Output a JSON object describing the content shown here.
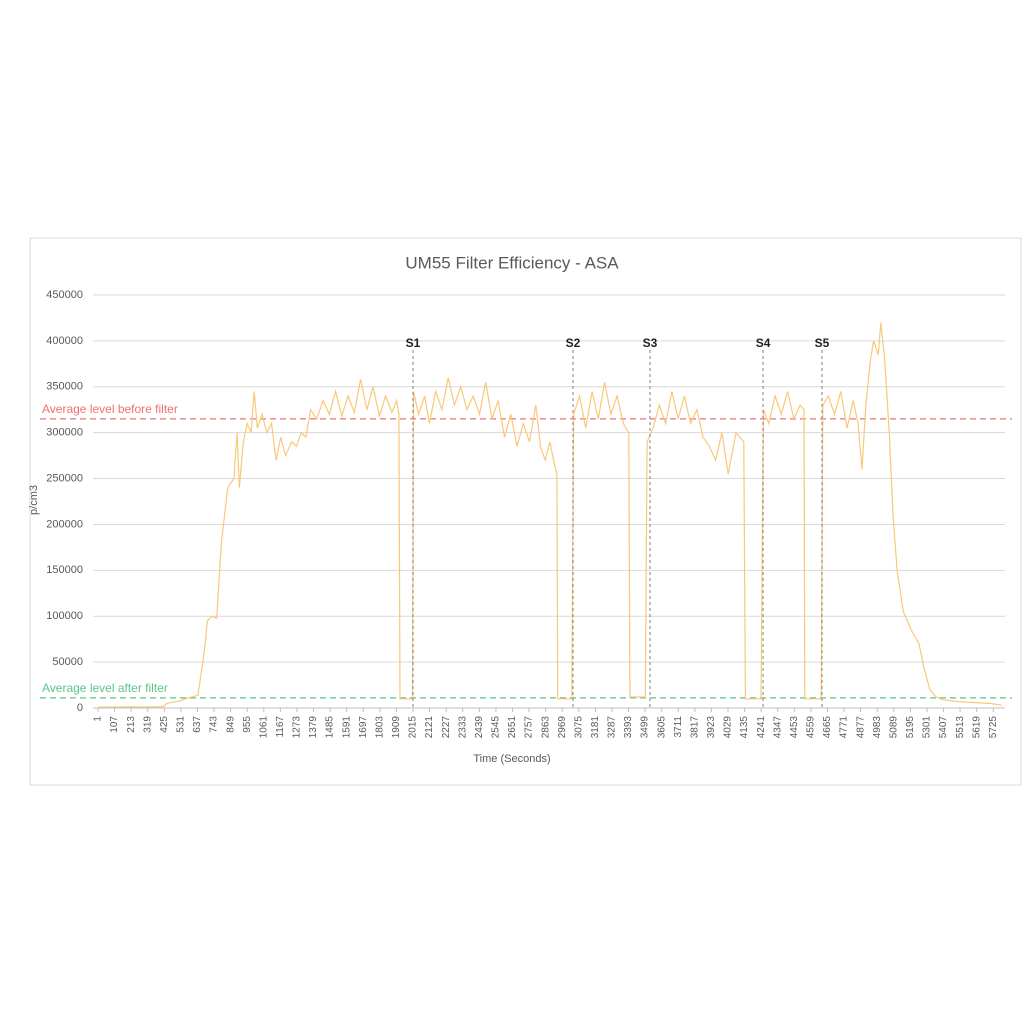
{
  "chart_data": {
    "type": "line",
    "title": "UM55 Filter Efficiency - ASA",
    "x_label": "Time (Seconds)",
    "y_label": "p/cm3",
    "xlim": [
      1,
      5800
    ],
    "ylim": [
      0,
      450000
    ],
    "yticks": [
      0,
      50000,
      100000,
      150000,
      200000,
      250000,
      300000,
      350000,
      400000,
      450000
    ],
    "xticks": [
      1,
      107,
      213,
      319,
      425,
      531,
      637,
      743,
      849,
      955,
      1061,
      1167,
      1273,
      1379,
      1485,
      1591,
      1697,
      1803,
      1909,
      2015,
      2121,
      2227,
      2333,
      2439,
      2545,
      2651,
      2757,
      2863,
      2969,
      3075,
      3181,
      3287,
      3393,
      3499,
      3605,
      3711,
      3817,
      3923,
      4029,
      4135,
      4241,
      4347,
      4453,
      4559,
      4665,
      4771,
      4877,
      4983,
      5089,
      5195,
      5301,
      5407,
      5513,
      5619,
      5725
    ],
    "grid": true,
    "reference_lines": [
      {
        "label": "Average level before filter",
        "value": 315000,
        "color": "#f07070"
      },
      {
        "label": "Average level after filter",
        "value": 11000,
        "color": "#5cc48a"
      }
    ],
    "markers": [
      {
        "label": "S1",
        "x": 2015
      },
      {
        "label": "S2",
        "x": 3038
      },
      {
        "label": "S3",
        "x": 3530
      },
      {
        "label": "S4",
        "x": 4253
      },
      {
        "label": "S5",
        "x": 4630
      }
    ],
    "series": [
      {
        "color": "#f9c87a",
        "x": [
          1,
          100,
          200,
          300,
          420,
          440,
          530,
          560,
          640,
          680,
          700,
          730,
          760,
          790,
          830,
          870,
          890,
          905,
          930,
          955,
          980,
          1000,
          1020,
          1050,
          1080,
          1110,
          1140,
          1170,
          1200,
          1240,
          1270,
          1300,
          1330,
          1360,
          1400,
          1440,
          1480,
          1520,
          1560,
          1600,
          1640,
          1680,
          1720,
          1760,
          1800,
          1840,
          1880,
          1910,
          1925,
          1932,
          2000,
          2012,
          2018,
          2050,
          2090,
          2120,
          2160,
          2200,
          2240,
          2280,
          2320,
          2360,
          2400,
          2440,
          2480,
          2520,
          2560,
          2600,
          2640,
          2680,
          2720,
          2760,
          2800,
          2830,
          2860,
          2890,
          2920,
          2935,
          2940,
          3030,
          3042,
          3080,
          3120,
          3160,
          3200,
          3240,
          3280,
          3320,
          3360,
          3395,
          3402,
          3500,
          3512,
          3550,
          3590,
          3630,
          3670,
          3710,
          3750,
          3790,
          3830,
          3870,
          3910,
          3950,
          3990,
          4030,
          4080,
          4130,
          4140,
          4240,
          4255,
          4290,
          4330,
          4370,
          4410,
          4450,
          4490,
          4515,
          4520,
          4625,
          4635,
          4670,
          4710,
          4750,
          4790,
          4830,
          4860,
          4886,
          4910,
          4940,
          4960,
          4990,
          5006,
          5030,
          5060,
          5084,
          5110,
          5150,
          5200,
          5250,
          5280,
          5320,
          5360,
          5400,
          5500,
          5600,
          5700,
          5780
        ],
        "values": [
          1000,
          1000,
          1200,
          1000,
          1500,
          5000,
          8000,
          10000,
          14000,
          60000,
          95000,
          100000,
          98000,
          180000,
          240000,
          250000,
          300000,
          240000,
          290000,
          310000,
          300000,
          345000,
          305000,
          320000,
          300000,
          310000,
          270000,
          295000,
          275000,
          290000,
          285000,
          300000,
          295000,
          325000,
          315000,
          335000,
          320000,
          345000,
          318000,
          340000,
          322000,
          358000,
          325000,
          350000,
          318000,
          340000,
          322000,
          335000,
          320000,
          10000,
          10000,
          10000,
          345000,
          320000,
          340000,
          310000,
          345000,
          325000,
          360000,
          330000,
          350000,
          325000,
          340000,
          320000,
          355000,
          315000,
          335000,
          295000,
          320000,
          285000,
          310000,
          290000,
          330000,
          285000,
          270000,
          290000,
          265000,
          255000,
          10000,
          10000,
          320000,
          340000,
          305000,
          345000,
          315000,
          355000,
          320000,
          340000,
          310000,
          300000,
          12000,
          12000,
          290000,
          305000,
          330000,
          310000,
          345000,
          315000,
          340000,
          310000,
          325000,
          295000,
          285000,
          270000,
          300000,
          255000,
          300000,
          290000,
          10000,
          10000,
          325000,
          310000,
          340000,
          320000,
          345000,
          315000,
          330000,
          325000,
          10000,
          10000,
          330000,
          340000,
          320000,
          345000,
          305000,
          335000,
          310000,
          260000,
          330000,
          380000,
          400000,
          385000,
          420000,
          380000,
          300000,
          210000,
          150000,
          105000,
          85000,
          70000,
          45000,
          20000,
          12000,
          9000,
          7000,
          6000,
          5000,
          3000
        ]
      }
    ]
  }
}
